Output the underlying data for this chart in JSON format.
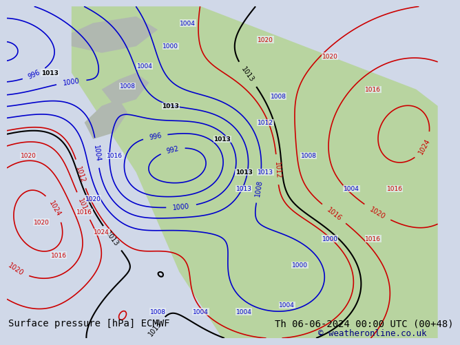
{
  "title_left": "Surface pressure [hPa] ECMWF",
  "title_right": "Th 06-06-2024 00:00 UTC (00+48)",
  "copyright": "© weatheronline.co.uk",
  "bg_color": "#d0d8e8",
  "map_bg_color": "#e8eef5",
  "land_color": "#b8d4a0",
  "text_color_black": "#000000",
  "text_color_blue": "#000080",
  "text_color_red": "#cc0000",
  "contour_blue": "#0000cc",
  "contour_red": "#cc0000",
  "contour_black": "#000000",
  "title_fontsize": 10,
  "copyright_fontsize": 9
}
